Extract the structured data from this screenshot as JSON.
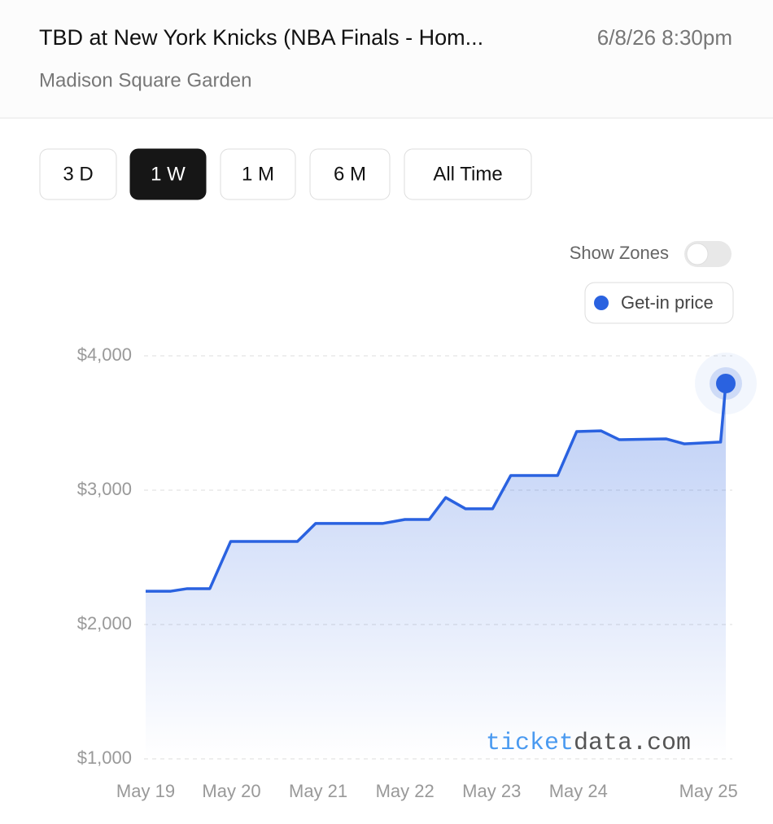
{
  "header": {
    "title": "TBD at New York Knicks (NBA Finals - Hom...",
    "datetime": "6/8/26 8:30pm",
    "venue": "Madison Square Garden"
  },
  "range_buttons": [
    "3 D",
    "1 W",
    "1 M",
    "6 M",
    "All Time"
  ],
  "active_range": "1 W",
  "show_zones": {
    "label": "Show Zones",
    "on": false
  },
  "watermark": [
    "ticket",
    "data.com"
  ],
  "chart_data": {
    "type": "line",
    "series": [
      {
        "name": "Get-in price",
        "color": "#2a62e0",
        "x": [
          0,
          0.29,
          0.48,
          0.74,
          0.98,
          1.75,
          1.96,
          2.73,
          2.99,
          3.27,
          3.46,
          3.69,
          4.0,
          4.21,
          4.75,
          4.97,
          5.25,
          5.46,
          6.0,
          6.21,
          6.63,
          6.69
        ],
        "values": [
          2248,
          2248,
          2267,
          2267,
          2618,
          2618,
          2752,
          2752,
          2782,
          2782,
          2945,
          2861,
          2861,
          3109,
          3109,
          3436,
          3442,
          3376,
          3382,
          3345,
          3358,
          3794
        ]
      }
    ],
    "xlim": [
      0,
      6.69
    ],
    "xticks": [
      {
        "value": 0,
        "label": "May 19"
      },
      {
        "value": 0.99,
        "label": "May 20"
      },
      {
        "value": 1.99,
        "label": "May 21"
      },
      {
        "value": 2.99,
        "label": "May 22"
      },
      {
        "value": 3.99,
        "label": "May 23"
      },
      {
        "value": 4.99,
        "label": "May 24"
      },
      {
        "value": 6.49,
        "label": "May 25"
      }
    ],
    "ylim": [
      1000,
      4000
    ],
    "yticks": [
      {
        "value": 1000,
        "label": "$1,000"
      },
      {
        "value": 2000,
        "label": "$2,000"
      },
      {
        "value": 3000,
        "label": "$3,000"
      },
      {
        "value": 4000,
        "label": "$4,000"
      }
    ],
    "grid": true
  }
}
